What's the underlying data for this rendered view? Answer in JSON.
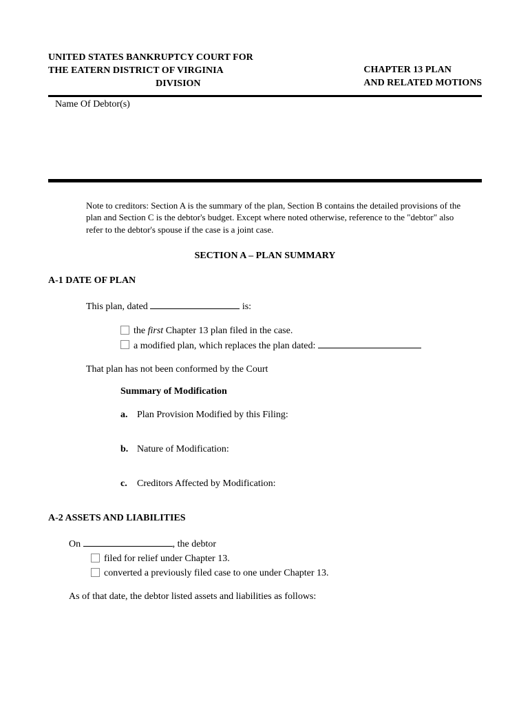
{
  "header": {
    "court_line1": "UNITED STATES BANKRUPTCY COURT FOR",
    "court_line2": "THE EATERN DISTRICT OF VIRGINIA",
    "court_line3": "DIVISION",
    "right_line1": "CHAPTER 13 PLAN",
    "right_line2": "AND RELATED MOTIONS"
  },
  "debtor_label": "Name Of Debtor(s)",
  "note": "Note to creditors: Section A is the summary of the plan, Section B contains the detailed provisions of the plan and Section C is the debtor's budget. Except where noted otherwise, reference to the \"debtor\" also refer to the debtor's spouse if the case is a joint case.",
  "section_a_title": "SECTION A – PLAN SUMMARY",
  "a1": {
    "heading": "A-1 DATE OF PLAN",
    "intro_pre": "This plan, dated ",
    "intro_post": " is:",
    "opt1_pre": "the ",
    "opt1_italic": "first",
    "opt1_post": " Chapter 13 plan filed in the case.",
    "opt2": "a modified plan, which replaces the plan dated: ",
    "not_conformed": "That plan has not been conformed by the Court",
    "mod_heading": "Summary of Modification",
    "mod_a_letter": "a.",
    "mod_a": "Plan Provision Modified by this Filing:",
    "mod_b_letter": "b.",
    "mod_b": "Nature of Modification:",
    "mod_c_letter": "c.",
    "mod_c": "Creditors Affected by Modification:"
  },
  "a2": {
    "heading": "A-2 ASSETS AND LIABILITIES",
    "intro_pre": "On ",
    "intro_post": ", the debtor",
    "opt1": "filed for relief under Chapter 13.",
    "opt2": "converted a previously filed case to one under Chapter 13.",
    "closing": "As of that date, the debtor listed assets and liabilities as follows:"
  }
}
